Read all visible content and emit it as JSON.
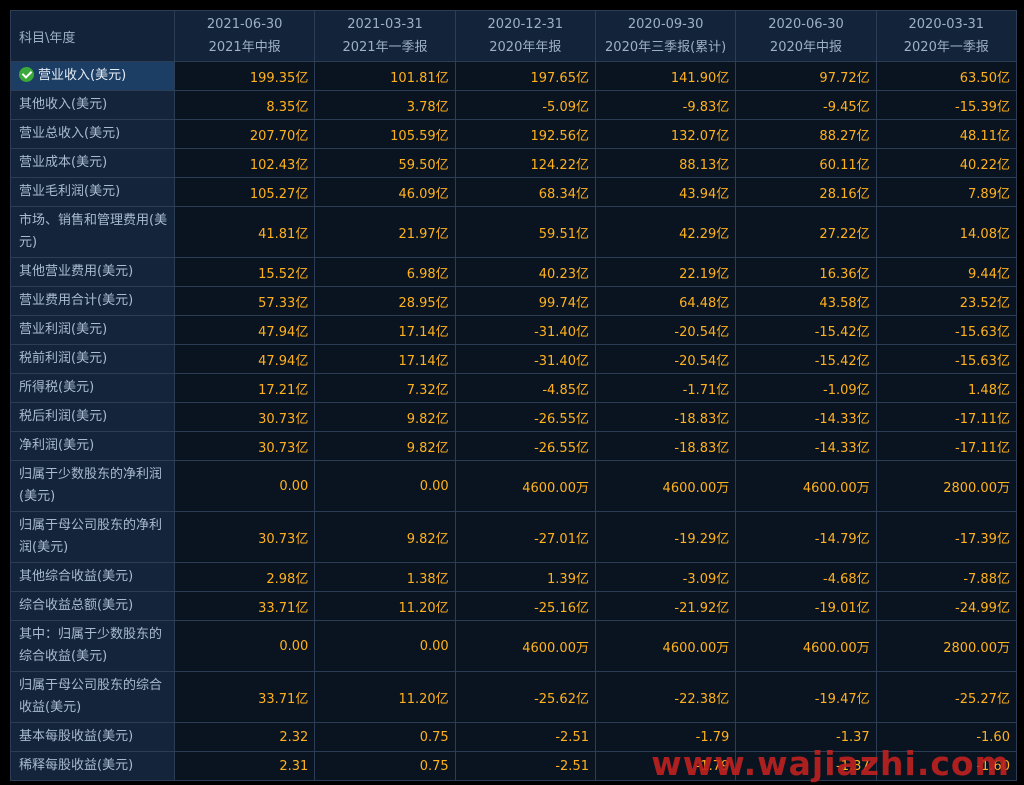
{
  "table": {
    "corner_label": "科目\\年度",
    "columns": [
      {
        "date": "2021-06-30",
        "period": "2021年中报"
      },
      {
        "date": "2021-03-31",
        "period": "2021年一季报"
      },
      {
        "date": "2020-12-31",
        "period": "2020年年报"
      },
      {
        "date": "2020-09-30",
        "period": "2020年三季报(累计)"
      },
      {
        "date": "2020-06-30",
        "period": "2020年中报"
      },
      {
        "date": "2020-03-31",
        "period": "2020年一季报"
      }
    ],
    "rows": [
      {
        "label": "营业收入(美元)",
        "selected": true,
        "values": [
          "199.35亿",
          "101.81亿",
          "197.65亿",
          "141.90亿",
          "97.72亿",
          "63.50亿"
        ]
      },
      {
        "label": "其他收入(美元)",
        "values": [
          "8.35亿",
          "3.78亿",
          "-5.09亿",
          "-9.83亿",
          "-9.45亿",
          "-15.39亿"
        ]
      },
      {
        "label": "营业总收入(美元)",
        "values": [
          "207.70亿",
          "105.59亿",
          "192.56亿",
          "132.07亿",
          "88.27亿",
          "48.11亿"
        ]
      },
      {
        "label": "营业成本(美元)",
        "values": [
          "102.43亿",
          "59.50亿",
          "124.22亿",
          "88.13亿",
          "60.11亿",
          "40.22亿"
        ]
      },
      {
        "label": "营业毛利润(美元)",
        "values": [
          "105.27亿",
          "46.09亿",
          "68.34亿",
          "43.94亿",
          "28.16亿",
          "7.89亿"
        ]
      },
      {
        "label": "市场、销售和管理费用(美元)",
        "values": [
          "41.81亿",
          "21.97亿",
          "59.51亿",
          "42.29亿",
          "27.22亿",
          "14.08亿"
        ]
      },
      {
        "label": "其他营业费用(美元)",
        "values": [
          "15.52亿",
          "6.98亿",
          "40.23亿",
          "22.19亿",
          "16.36亿",
          "9.44亿"
        ]
      },
      {
        "label": "营业费用合计(美元)",
        "values": [
          "57.33亿",
          "28.95亿",
          "99.74亿",
          "64.48亿",
          "43.58亿",
          "23.52亿"
        ]
      },
      {
        "label": "营业利润(美元)",
        "values": [
          "47.94亿",
          "17.14亿",
          "-31.40亿",
          "-20.54亿",
          "-15.42亿",
          "-15.63亿"
        ]
      },
      {
        "label": "税前利润(美元)",
        "values": [
          "47.94亿",
          "17.14亿",
          "-31.40亿",
          "-20.54亿",
          "-15.42亿",
          "-15.63亿"
        ]
      },
      {
        "label": "所得税(美元)",
        "values": [
          "17.21亿",
          "7.32亿",
          "-4.85亿",
          "-1.71亿",
          "-1.09亿",
          "1.48亿"
        ]
      },
      {
        "label": "税后利润(美元)",
        "values": [
          "30.73亿",
          "9.82亿",
          "-26.55亿",
          "-18.83亿",
          "-14.33亿",
          "-17.11亿"
        ]
      },
      {
        "label": "净利润(美元)",
        "values": [
          "30.73亿",
          "9.82亿",
          "-26.55亿",
          "-18.83亿",
          "-14.33亿",
          "-17.11亿"
        ]
      },
      {
        "label": "归属于少数股东的净利润(美元)",
        "values": [
          "0.00",
          "0.00",
          "4600.00万",
          "4600.00万",
          "4600.00万",
          "2800.00万"
        ]
      },
      {
        "label": "归属于母公司股东的净利润(美元)",
        "values": [
          "30.73亿",
          "9.82亿",
          "-27.01亿",
          "-19.29亿",
          "-14.79亿",
          "-17.39亿"
        ]
      },
      {
        "label": "其他综合收益(美元)",
        "values": [
          "2.98亿",
          "1.38亿",
          "1.39亿",
          "-3.09亿",
          "-4.68亿",
          "-7.88亿"
        ]
      },
      {
        "label": "综合收益总额(美元)",
        "values": [
          "33.71亿",
          "11.20亿",
          "-25.16亿",
          "-21.92亿",
          "-19.01亿",
          "-24.99亿"
        ]
      },
      {
        "label": "其中：归属于少数股东的综合收益(美元)",
        "values": [
          "0.00",
          "0.00",
          "4600.00万",
          "4600.00万",
          "4600.00万",
          "2800.00万"
        ]
      },
      {
        "label": "归属于母公司股东的综合收益(美元)",
        "values": [
          "33.71亿",
          "11.20亿",
          "-25.62亿",
          "-22.38亿",
          "-19.47亿",
          "-25.27亿"
        ]
      },
      {
        "label": "基本每股收益(美元)",
        "values": [
          "2.32",
          "0.75",
          "-2.51",
          "-1.79",
          "-1.37",
          "-1.60"
        ]
      },
      {
        "label": "稀释每股收益(美元)",
        "values": [
          "2.31",
          "0.75",
          "-2.51",
          "-1.79",
          "-1.37",
          "-1.60"
        ]
      }
    ]
  },
  "watermark": "www.wajiazhi.com",
  "icons": {
    "selected_row": "check-circle-icon"
  },
  "colors": {
    "value_text": "#ffb21e",
    "label_text": "#a9bbcf",
    "selected_check": "#3aa83a",
    "watermark": "#c0221f"
  }
}
